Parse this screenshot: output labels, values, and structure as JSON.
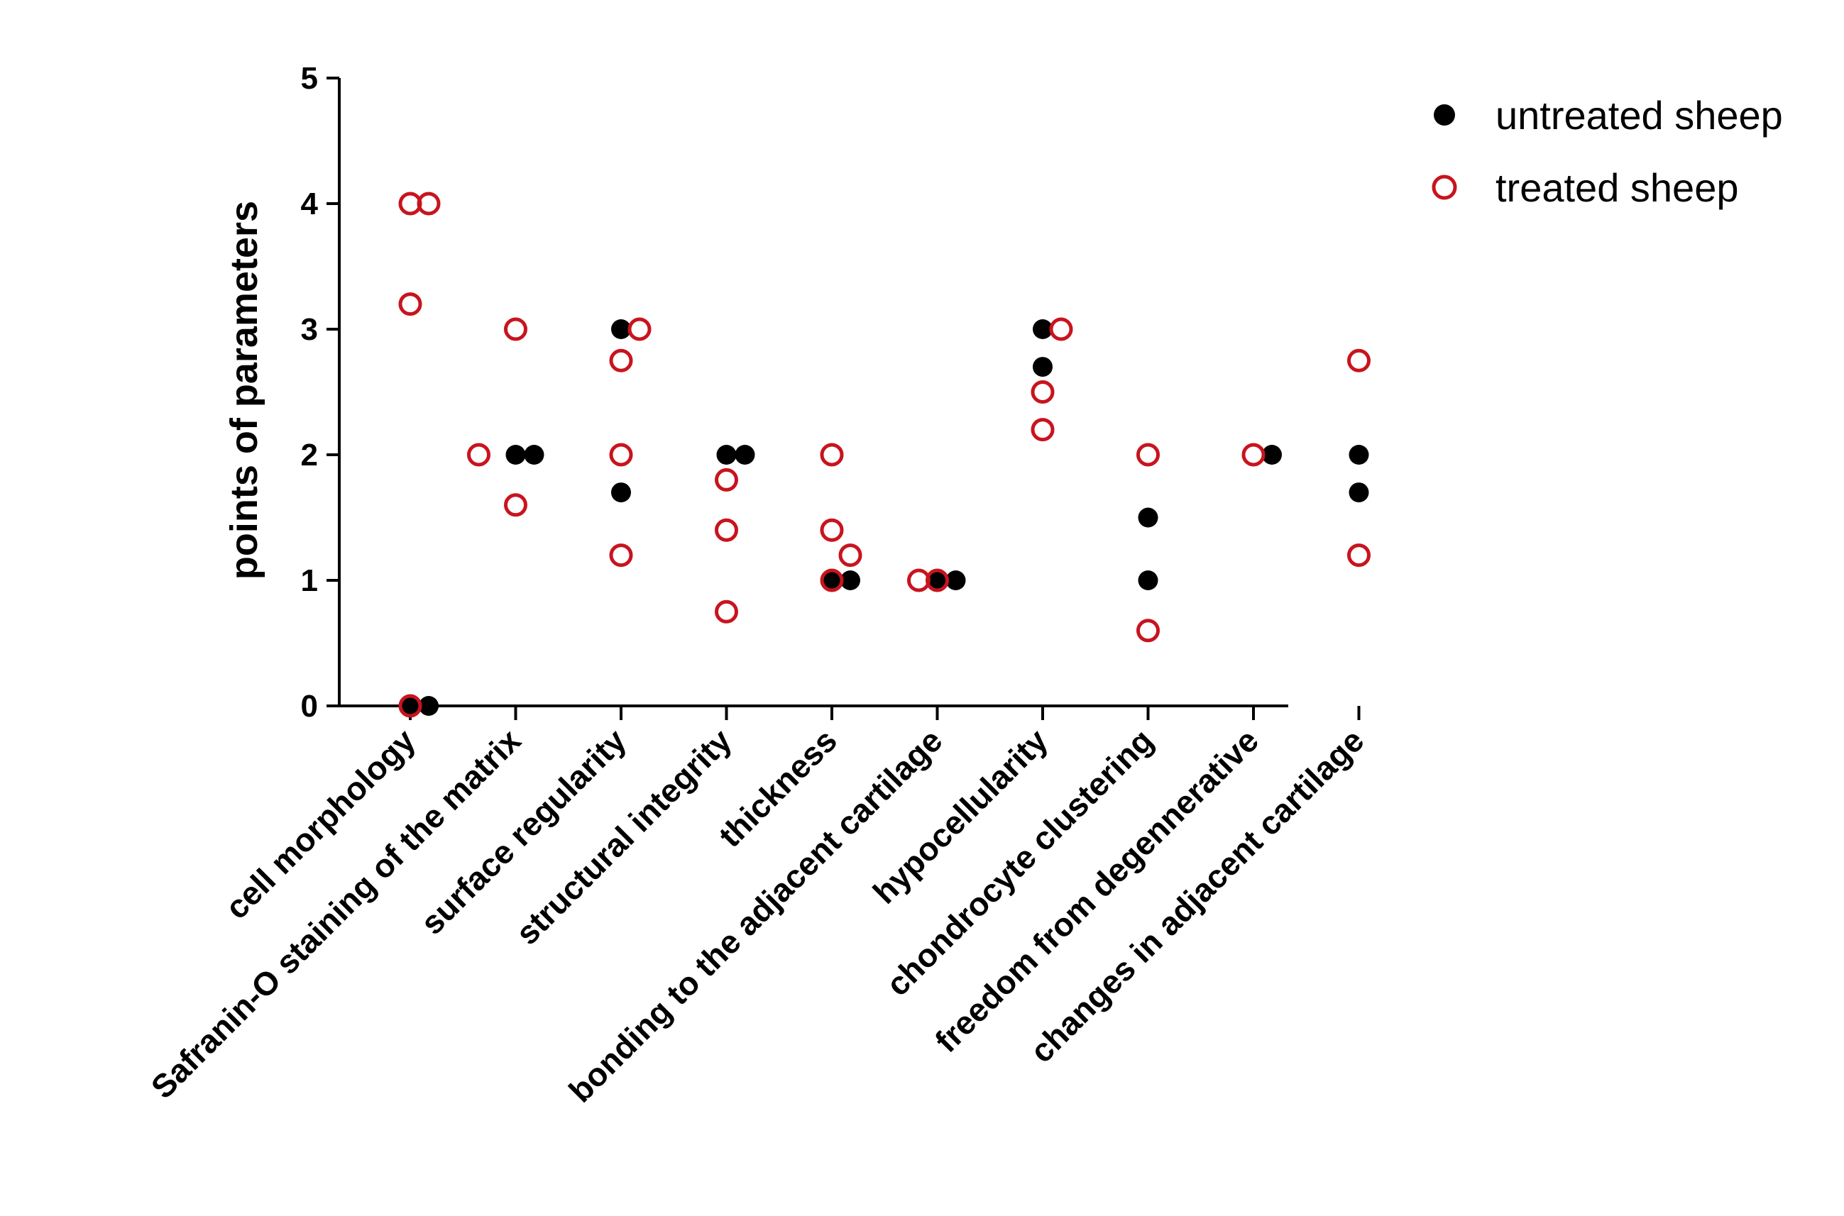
{
  "chart_data": {
    "type": "scatter",
    "title": "",
    "xlabel": "",
    "ylabel": "points of parameters",
    "ylim": [
      0,
      5
    ],
    "yticks": [
      0,
      1,
      2,
      3,
      4,
      5
    ],
    "legend_position": "top-right",
    "categories": [
      "cell morphology",
      "Safranin-O staining of the matrix",
      "surface regularity",
      "structural integrity",
      "thickness",
      "bonding to the adjacent cartilage",
      "hypocellularity",
      "chondrocyte clustering",
      "freedom from degennerative",
      "changes in adjacent cartilage"
    ],
    "series": [
      {
        "name": "untreated sheep",
        "marker": "filled-circle",
        "color": "#000000",
        "points": [
          {
            "category": 0,
            "value": 0,
            "jitter": 0
          },
          {
            "category": 0,
            "value": 0,
            "jitter": 1
          },
          {
            "category": 1,
            "value": 2,
            "jitter": 0
          },
          {
            "category": 1,
            "value": 2,
            "jitter": 1
          },
          {
            "category": 2,
            "value": 3,
            "jitter": 0
          },
          {
            "category": 2,
            "value": 1.7,
            "jitter": 0
          },
          {
            "category": 3,
            "value": 2,
            "jitter": 0
          },
          {
            "category": 3,
            "value": 2,
            "jitter": 1
          },
          {
            "category": 4,
            "value": 1,
            "jitter": 0
          },
          {
            "category": 4,
            "value": 1,
            "jitter": 1
          },
          {
            "category": 5,
            "value": 1,
            "jitter": 0
          },
          {
            "category": 5,
            "value": 1,
            "jitter": 1
          },
          {
            "category": 6,
            "value": 3,
            "jitter": 0
          },
          {
            "category": 6,
            "value": 2.7,
            "jitter": 0
          },
          {
            "category": 7,
            "value": 1.5,
            "jitter": 0
          },
          {
            "category": 7,
            "value": 1,
            "jitter": 0
          },
          {
            "category": 8,
            "value": 2,
            "jitter": 1
          },
          {
            "category": 9,
            "value": 2,
            "jitter": 0
          },
          {
            "category": 9,
            "value": 1.7,
            "jitter": 0
          }
        ]
      },
      {
        "name": "treated sheep",
        "marker": "open-circle",
        "color": "#c8141e",
        "points": [
          {
            "category": 0,
            "value": 4,
            "jitter": 0
          },
          {
            "category": 0,
            "value": 4,
            "jitter": 1
          },
          {
            "category": 0,
            "value": 3.2,
            "jitter": 0
          },
          {
            "category": 0,
            "value": 0,
            "jitter": 0
          },
          {
            "category": 1,
            "value": 3,
            "jitter": 0
          },
          {
            "category": 1,
            "value": 2,
            "jitter": -2
          },
          {
            "category": 1,
            "value": 1.6,
            "jitter": 0
          },
          {
            "category": 2,
            "value": 3,
            "jitter": 1
          },
          {
            "category": 2,
            "value": 2.75,
            "jitter": 0
          },
          {
            "category": 2,
            "value": 2,
            "jitter": 0
          },
          {
            "category": 2,
            "value": 1.2,
            "jitter": 0
          },
          {
            "category": 3,
            "value": 1.8,
            "jitter": 0
          },
          {
            "category": 3,
            "value": 1.4,
            "jitter": 0
          },
          {
            "category": 3,
            "value": 0.75,
            "jitter": 0
          },
          {
            "category": 4,
            "value": 2,
            "jitter": 0
          },
          {
            "category": 4,
            "value": 1.4,
            "jitter": 0
          },
          {
            "category": 4,
            "value": 1.2,
            "jitter": 1
          },
          {
            "category": 4,
            "value": 1,
            "jitter": 0
          },
          {
            "category": 5,
            "value": 1,
            "jitter": -1
          },
          {
            "category": 5,
            "value": 1,
            "jitter": 0
          },
          {
            "category": 6,
            "value": 3,
            "jitter": 1
          },
          {
            "category": 6,
            "value": 2.5,
            "jitter": 0
          },
          {
            "category": 6,
            "value": 2.2,
            "jitter": 0
          },
          {
            "category": 7,
            "value": 2,
            "jitter": 0
          },
          {
            "category": 7,
            "value": 0.6,
            "jitter": 0
          },
          {
            "category": 8,
            "value": 2,
            "jitter": 0
          },
          {
            "category": 9,
            "value": 2.75,
            "jitter": 0
          },
          {
            "category": 9,
            "value": 1.2,
            "jitter": 0
          }
        ]
      }
    ]
  }
}
